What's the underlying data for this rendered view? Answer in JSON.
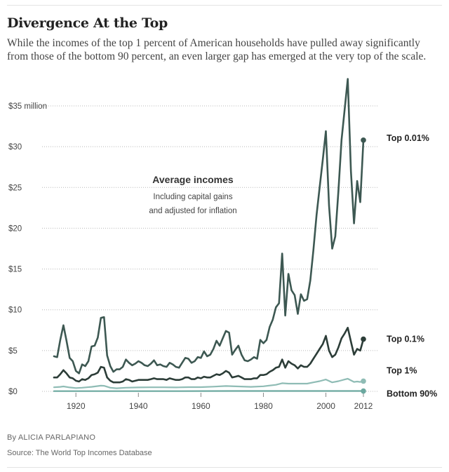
{
  "title": "Divergence At the Top",
  "subtitle": "While the incomes of the top 1 percent of American households have pulled away significantly from those of the bottom 90 percent, an even larger gap has emerged at the very top of the scale.",
  "byline": "By ALICIA PARLAPIANO",
  "source": "Source: The World Top Incomes Database",
  "chart_data": {
    "type": "line",
    "annotation": {
      "title": "Average incomes",
      "lines": [
        "Including capital gains",
        "and adjusted for inflation"
      ]
    },
    "y_ticks": [
      "$0",
      "$5",
      "$10",
      "$15",
      "$20",
      "$25",
      "$30",
      "$35 million"
    ],
    "y_tick_values": [
      0,
      5,
      10,
      15,
      20,
      25,
      30,
      35
    ],
    "x_ticks": [
      "1920",
      "1940",
      "1960",
      "1980",
      "2000",
      "2012"
    ],
    "x_tick_values": [
      1920,
      1940,
      1960,
      1980,
      2000,
      2012
    ],
    "xlim": [
      1913,
      2012
    ],
    "ylim": [
      0,
      35
    ],
    "grid": true,
    "colors": {
      "top001": "#3d5852",
      "top01": "#2c3d38",
      "top1": "#8fbcb5",
      "bottom90": "#6ba89f",
      "grid": "#b8b8b8"
    },
    "series": [
      {
        "name": "Top 0.01%",
        "color_key": "top001",
        "points": [
          [
            1913,
            4.3
          ],
          [
            1914,
            4.2
          ],
          [
            1915,
            6.3
          ],
          [
            1916,
            8.1
          ],
          [
            1917,
            6.2
          ],
          [
            1918,
            4.1
          ],
          [
            1919,
            3.7
          ],
          [
            1920,
            2.5
          ],
          [
            1921,
            2.2
          ],
          [
            1922,
            3.3
          ],
          [
            1923,
            3.1
          ],
          [
            1924,
            3.7
          ],
          [
            1925,
            5.5
          ],
          [
            1926,
            5.6
          ],
          [
            1927,
            6.6
          ],
          [
            1928,
            9.0
          ],
          [
            1929,
            9.1
          ],
          [
            1930,
            4.4
          ],
          [
            1931,
            3.1
          ],
          [
            1932,
            2.4
          ],
          [
            1933,
            2.7
          ],
          [
            1934,
            2.7
          ],
          [
            1935,
            3.0
          ],
          [
            1936,
            3.9
          ],
          [
            1937,
            3.5
          ],
          [
            1938,
            3.2
          ],
          [
            1939,
            3.4
          ],
          [
            1940,
            3.7
          ],
          [
            1941,
            3.5
          ],
          [
            1942,
            3.2
          ],
          [
            1943,
            3.1
          ],
          [
            1944,
            3.4
          ],
          [
            1945,
            3.8
          ],
          [
            1946,
            3.2
          ],
          [
            1947,
            3.3
          ],
          [
            1948,
            3.1
          ],
          [
            1949,
            3.0
          ],
          [
            1950,
            3.5
          ],
          [
            1951,
            3.3
          ],
          [
            1952,
            3.0
          ],
          [
            1953,
            2.9
          ],
          [
            1954,
            3.5
          ],
          [
            1955,
            4.1
          ],
          [
            1956,
            4.0
          ],
          [
            1957,
            3.5
          ],
          [
            1958,
            3.7
          ],
          [
            1959,
            4.2
          ],
          [
            1960,
            4.1
          ],
          [
            1961,
            4.9
          ],
          [
            1962,
            4.3
          ],
          [
            1963,
            4.5
          ],
          [
            1964,
            5.2
          ],
          [
            1965,
            6.2
          ],
          [
            1966,
            5.6
          ],
          [
            1967,
            6.5
          ],
          [
            1968,
            7.4
          ],
          [
            1969,
            7.2
          ],
          [
            1970,
            4.5
          ],
          [
            1971,
            5.1
          ],
          [
            1972,
            5.6
          ],
          [
            1973,
            4.5
          ],
          [
            1974,
            3.8
          ],
          [
            1975,
            3.7
          ],
          [
            1976,
            3.9
          ],
          [
            1977,
            4.2
          ],
          [
            1978,
            4.0
          ],
          [
            1979,
            6.3
          ],
          [
            1980,
            5.9
          ],
          [
            1981,
            6.3
          ],
          [
            1982,
            7.9
          ],
          [
            1983,
            8.8
          ],
          [
            1984,
            10.3
          ],
          [
            1985,
            10.8
          ],
          [
            1986,
            16.9
          ],
          [
            1987,
            9.3
          ],
          [
            1988,
            14.4
          ],
          [
            1989,
            12.4
          ],
          [
            1990,
            11.8
          ],
          [
            1991,
            9.5
          ],
          [
            1992,
            11.9
          ],
          [
            1993,
            11.1
          ],
          [
            1994,
            11.3
          ],
          [
            1995,
            13.6
          ],
          [
            1996,
            17.3
          ],
          [
            1997,
            21.6
          ],
          [
            1998,
            25.0
          ],
          [
            1999,
            28.4
          ],
          [
            2000,
            31.9
          ],
          [
            2001,
            22.8
          ],
          [
            2002,
            17.5
          ],
          [
            2003,
            19.0
          ],
          [
            2004,
            24.6
          ],
          [
            2005,
            30.8
          ],
          [
            2006,
            34.6
          ],
          [
            2007,
            38.3
          ],
          [
            2008,
            27.0
          ],
          [
            2009,
            20.6
          ],
          [
            2010,
            25.8
          ],
          [
            2011,
            23.2
          ],
          [
            2012,
            30.8
          ]
        ]
      },
      {
        "name": "Top 0.1%",
        "color_key": "top01",
        "points": [
          [
            1913,
            1.7
          ],
          [
            1914,
            1.7
          ],
          [
            1915,
            2.1
          ],
          [
            1916,
            2.6
          ],
          [
            1917,
            2.2
          ],
          [
            1918,
            1.7
          ],
          [
            1919,
            1.6
          ],
          [
            1920,
            1.3
          ],
          [
            1921,
            1.2
          ],
          [
            1922,
            1.5
          ],
          [
            1923,
            1.4
          ],
          [
            1924,
            1.6
          ],
          [
            1925,
            2.0
          ],
          [
            1926,
            2.1
          ],
          [
            1927,
            2.3
          ],
          [
            1928,
            3.0
          ],
          [
            1929,
            2.9
          ],
          [
            1930,
            1.7
          ],
          [
            1931,
            1.3
          ],
          [
            1932,
            1.1
          ],
          [
            1933,
            1.1
          ],
          [
            1934,
            1.1
          ],
          [
            1935,
            1.2
          ],
          [
            1936,
            1.5
          ],
          [
            1937,
            1.4
          ],
          [
            1938,
            1.2
          ],
          [
            1939,
            1.3
          ],
          [
            1940,
            1.4
          ],
          [
            1941,
            1.4
          ],
          [
            1942,
            1.4
          ],
          [
            1943,
            1.4
          ],
          [
            1944,
            1.5
          ],
          [
            1945,
            1.6
          ],
          [
            1946,
            1.5
          ],
          [
            1947,
            1.5
          ],
          [
            1948,
            1.5
          ],
          [
            1949,
            1.4
          ],
          [
            1950,
            1.6
          ],
          [
            1951,
            1.5
          ],
          [
            1952,
            1.4
          ],
          [
            1953,
            1.4
          ],
          [
            1954,
            1.5
          ],
          [
            1955,
            1.7
          ],
          [
            1956,
            1.7
          ],
          [
            1957,
            1.5
          ],
          [
            1958,
            1.5
          ],
          [
            1959,
            1.7
          ],
          [
            1960,
            1.6
          ],
          [
            1961,
            1.8
          ],
          [
            1962,
            1.7
          ],
          [
            1963,
            1.7
          ],
          [
            1964,
            1.9
          ],
          [
            1965,
            2.1
          ],
          [
            1966,
            2.0
          ],
          [
            1967,
            2.2
          ],
          [
            1968,
            2.5
          ],
          [
            1969,
            2.3
          ],
          [
            1970,
            1.7
          ],
          [
            1971,
            1.8
          ],
          [
            1972,
            1.9
          ],
          [
            1973,
            1.7
          ],
          [
            1974,
            1.5
          ],
          [
            1975,
            1.5
          ],
          [
            1976,
            1.5
          ],
          [
            1977,
            1.6
          ],
          [
            1978,
            1.6
          ],
          [
            1979,
            2.0
          ],
          [
            1980,
            2.0
          ],
          [
            1981,
            2.1
          ],
          [
            1982,
            2.4
          ],
          [
            1983,
            2.6
          ],
          [
            1984,
            2.9
          ],
          [
            1985,
            3.0
          ],
          [
            1986,
            3.9
          ],
          [
            1987,
            2.9
          ],
          [
            1988,
            3.7
          ],
          [
            1989,
            3.4
          ],
          [
            1990,
            3.2
          ],
          [
            1991,
            2.8
          ],
          [
            1992,
            3.2
          ],
          [
            1993,
            3.0
          ],
          [
            1994,
            3.0
          ],
          [
            1995,
            3.4
          ],
          [
            1996,
            4.0
          ],
          [
            1997,
            4.6
          ],
          [
            1998,
            5.2
          ],
          [
            1999,
            5.8
          ],
          [
            2000,
            6.8
          ],
          [
            2001,
            5.0
          ],
          [
            2002,
            4.2
          ],
          [
            2003,
            4.5
          ],
          [
            2004,
            5.4
          ],
          [
            2005,
            6.5
          ],
          [
            2006,
            7.1
          ],
          [
            2007,
            7.8
          ],
          [
            2008,
            6.1
          ],
          [
            2009,
            4.5
          ],
          [
            2010,
            5.2
          ],
          [
            2011,
            5.0
          ],
          [
            2012,
            6.4
          ]
        ]
      },
      {
        "name": "Top 1%",
        "color_key": "top1",
        "points": [
          [
            1913,
            0.5
          ],
          [
            1915,
            0.55
          ],
          [
            1916,
            0.6
          ],
          [
            1918,
            0.48
          ],
          [
            1920,
            0.4
          ],
          [
            1922,
            0.45
          ],
          [
            1925,
            0.55
          ],
          [
            1928,
            0.7
          ],
          [
            1929,
            0.68
          ],
          [
            1931,
            0.45
          ],
          [
            1933,
            0.38
          ],
          [
            1936,
            0.45
          ],
          [
            1940,
            0.48
          ],
          [
            1944,
            0.5
          ],
          [
            1948,
            0.5
          ],
          [
            1952,
            0.48
          ],
          [
            1956,
            0.52
          ],
          [
            1960,
            0.52
          ],
          [
            1964,
            0.58
          ],
          [
            1968,
            0.65
          ],
          [
            1972,
            0.6
          ],
          [
            1976,
            0.55
          ],
          [
            1980,
            0.62
          ],
          [
            1984,
            0.8
          ],
          [
            1986,
            1.0
          ],
          [
            1988,
            0.95
          ],
          [
            1990,
            0.95
          ],
          [
            1992,
            0.95
          ],
          [
            1994,
            0.95
          ],
          [
            1996,
            1.1
          ],
          [
            1998,
            1.25
          ],
          [
            2000,
            1.45
          ],
          [
            2002,
            1.1
          ],
          [
            2004,
            1.25
          ],
          [
            2006,
            1.45
          ],
          [
            2007,
            1.55
          ],
          [
            2009,
            1.15
          ],
          [
            2010,
            1.2
          ],
          [
            2011,
            1.15
          ],
          [
            2012,
            1.25
          ]
        ]
      },
      {
        "name": "Bottom 90%",
        "color_key": "bottom90",
        "points": [
          [
            1913,
            0.03
          ],
          [
            1930,
            0.03
          ],
          [
            1950,
            0.03
          ],
          [
            1970,
            0.04
          ],
          [
            1990,
            0.04
          ],
          [
            2012,
            0.04
          ]
        ]
      }
    ]
  }
}
